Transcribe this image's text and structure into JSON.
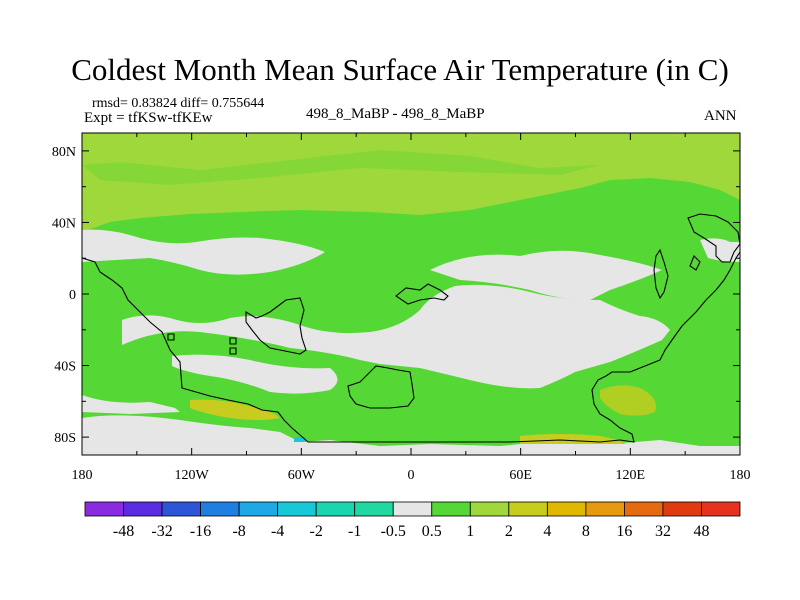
{
  "chart_data": {
    "type": "heatmap",
    "title": "Coldest Month Mean Surface Air Temperature (in C)",
    "stats_text": "rmsd= 0.83824 diff= 0.755644",
    "experiment_text": "Expt = tfKSw-tfKEw",
    "center_label": "498_8_MaBP - 498_8_MaBP",
    "season_label": "ANN",
    "x_ticks": [
      {
        "lon": -180,
        "label": "180"
      },
      {
        "lon": -120,
        "label": "120W"
      },
      {
        "lon": -60,
        "label": "60W"
      },
      {
        "lon": 0,
        "label": "0"
      },
      {
        "lon": 60,
        "label": "60E"
      },
      {
        "lon": 120,
        "label": "120E"
      },
      {
        "lon": 180,
        "label": "180"
      }
    ],
    "y_ticks": [
      {
        "lat": 80,
        "label": "80N"
      },
      {
        "lat": 40,
        "label": "40N"
      },
      {
        "lat": 0,
        "label": "0"
      },
      {
        "lat": -40,
        "label": "40S"
      },
      {
        "lat": -80,
        "label": "80S"
      }
    ],
    "xlim": [
      -180,
      180
    ],
    "ylim": [
      -90,
      90
    ],
    "colorbar": {
      "labels": [
        "-48",
        "-32",
        "-16",
        "-8",
        "-4",
        "-2",
        "-1",
        "-0.5",
        "0.5",
        "1",
        "2",
        "4",
        "8",
        "16",
        "32",
        "48"
      ],
      "colors": [
        "#8a2be2",
        "#5a2be0",
        "#2d55d8",
        "#1e7fe0",
        "#1ea8e6",
        "#19c8d8",
        "#1ad6b0",
        "#20d8a0",
        "#e6e6e6",
        "#55d835",
        "#9fd83a",
        "#c8cc1e",
        "#e0b800",
        "#e69a10",
        "#e66a10",
        "#e03a10",
        "#e6321e"
      ]
    },
    "fields": {
      "background_value_bin": "1 to 2",
      "background_color": "#9fd83a",
      "near_zero_color": "#e6e6e6",
      "mid_color": "#55d835",
      "warm_color": "#c8cc1e",
      "cool_color": "#19c8d8"
    }
  }
}
